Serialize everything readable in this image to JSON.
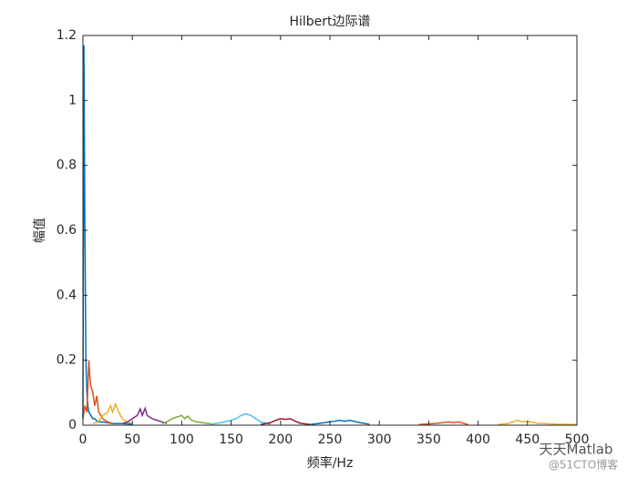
{
  "chart_data": {
    "type": "line",
    "title": "Hilbert边际谱",
    "x_label": "频率/Hz",
    "y_label": "幅值",
    "xlim": [
      0,
      500
    ],
    "ylim": [
      0,
      1.2
    ],
    "xticks": [
      0,
      50,
      100,
      150,
      200,
      250,
      300,
      350,
      400,
      450,
      500
    ],
    "yticks": [
      0,
      0.2,
      0.4,
      0.6,
      0.8,
      1,
      1.2
    ],
    "grid": false,
    "series": [
      {
        "color": "#0072BD",
        "x": [
          0,
          1,
          2,
          3,
          4,
          5,
          6,
          8,
          10,
          12,
          15,
          20,
          30,
          40,
          50
        ],
        "values": [
          0.02,
          1.17,
          0.6,
          0.2,
          0.1,
          0.06,
          0.04,
          0.03,
          0.02,
          0.02,
          0.01,
          0.01,
          0.005,
          0.005,
          0.003
        ]
      },
      {
        "color": "#D95319",
        "x": [
          0,
          2,
          4,
          6,
          7,
          8,
          10,
          12,
          14,
          16,
          20,
          25,
          30
        ],
        "values": [
          0.02,
          0.06,
          0.04,
          0.2,
          0.15,
          0.12,
          0.1,
          0.06,
          0.09,
          0.04,
          0.02,
          0.01,
          0.005
        ]
      },
      {
        "color": "#EDB120",
        "x": [
          10,
          15,
          20,
          25,
          28,
          30,
          33,
          35,
          38,
          40,
          45,
          50
        ],
        "values": [
          0.005,
          0.01,
          0.03,
          0.04,
          0.06,
          0.04,
          0.065,
          0.05,
          0.03,
          0.02,
          0.01,
          0.005
        ]
      },
      {
        "color": "#7E2F8E",
        "x": [
          40,
          45,
          50,
          55,
          58,
          60,
          63,
          65,
          70,
          75,
          80,
          85
        ],
        "values": [
          0.005,
          0.01,
          0.02,
          0.03,
          0.05,
          0.03,
          0.052,
          0.03,
          0.02,
          0.015,
          0.01,
          0.005
        ]
      },
      {
        "color": "#77AC30",
        "x": [
          80,
          85,
          90,
          95,
          100,
          103,
          106,
          110,
          115,
          120,
          130
        ],
        "values": [
          0.005,
          0.01,
          0.02,
          0.025,
          0.03,
          0.02,
          0.028,
          0.015,
          0.01,
          0.008,
          0.004
        ]
      },
      {
        "color": "#4DBEEE",
        "x": [
          130,
          140,
          150,
          155,
          160,
          165,
          170,
          175,
          180,
          190
        ],
        "values": [
          0.003,
          0.008,
          0.015,
          0.02,
          0.03,
          0.035,
          0.03,
          0.02,
          0.01,
          0.003
        ]
      },
      {
        "color": "#A2142F",
        "x": [
          180,
          190,
          195,
          200,
          205,
          210,
          215,
          220,
          230
        ],
        "values": [
          0.002,
          0.008,
          0.015,
          0.02,
          0.018,
          0.02,
          0.012,
          0.006,
          0.002
        ]
      },
      {
        "color": "#0072BD",
        "x": [
          230,
          240,
          250,
          260,
          265,
          270,
          280,
          290
        ],
        "values": [
          0.002,
          0.006,
          0.01,
          0.015,
          0.012,
          0.015,
          0.008,
          0.003
        ]
      },
      {
        "color": "#D95319",
        "x": [
          340,
          355,
          365,
          370,
          375,
          380,
          385,
          390
        ],
        "values": [
          0.002,
          0.005,
          0.008,
          0.01,
          0.008,
          0.01,
          0.006,
          0.002
        ]
      },
      {
        "color": "#EDB120",
        "x": [
          420,
          430,
          435,
          440,
          445,
          450,
          460,
          480,
          500
        ],
        "values": [
          0.002,
          0.005,
          0.01,
          0.015,
          0.01,
          0.012,
          0.006,
          0.003,
          0.002
        ]
      }
    ],
    "annotations": [
      "天天Matlab",
      "@51CTO博客"
    ]
  }
}
